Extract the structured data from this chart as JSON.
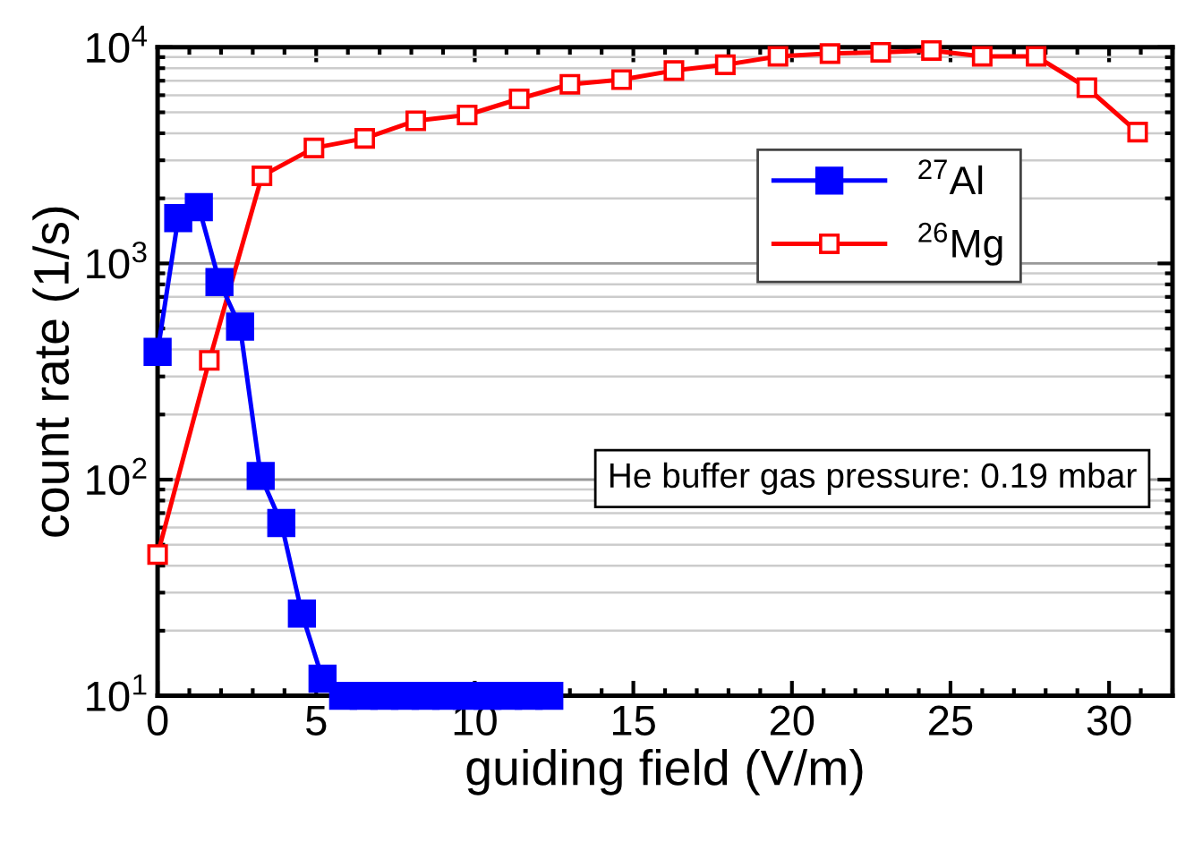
{
  "chart_data": {
    "type": "line",
    "xlabel": "guiding field (V/m)",
    "ylabel": "count rate (1/s)",
    "log": "y",
    "xlim": [
      0,
      32
    ],
    "xticks": [
      0,
      5,
      10,
      15,
      20,
      25,
      30
    ],
    "ylim": [
      10,
      10000
    ],
    "yticks": [
      {
        "value": 10,
        "label": "10$^{1}$"
      },
      {
        "value": 100,
        "label": "10$^{2}$"
      },
      {
        "value": 1000,
        "label": "10$^{3}$"
      },
      {
        "value": 10000,
        "label": "10$^{4}$"
      }
    ],
    "grid": "y",
    "legend": "right",
    "marker": "square",
    "line_style": "solid",
    "annotations": [
      "He buffer gas pressure: 0.19 mbar"
    ],
    "series": [
      {
        "name": "$^{27}$Al",
        "color": "#0000ff",
        "x": [
          0,
          0.65,
          1.3,
          1.95,
          2.6,
          3.25,
          3.9,
          4.55,
          5.2,
          5.85,
          6.5,
          7.15,
          7.8,
          8.45,
          9.1,
          9.75,
          10.4,
          11.05,
          11.7,
          12.35
        ],
        "values": [
          390,
          1620,
          1820,
          820,
          510,
          104,
          63,
          24,
          12,
          10,
          10,
          10,
          10,
          10,
          10,
          10,
          10,
          10,
          10,
          10
        ]
      },
      {
        "name": "$^{26}$Mg",
        "color": "#ff0000",
        "x": [
          0,
          1.63,
          3.29,
          4.93,
          6.53,
          8.14,
          9.76,
          11.4,
          13.0,
          14.63,
          16.28,
          17.9,
          19.56,
          21.2,
          22.8,
          24.4,
          26.0,
          27.7,
          29.3,
          30.9
        ],
        "values": [
          45,
          356,
          2540,
          3420,
          3790,
          4570,
          4860,
          5770,
          6740,
          7080,
          7800,
          8300,
          9080,
          9350,
          9480,
          9660,
          9080,
          9080,
          6500,
          4050
        ]
      }
    ]
  }
}
